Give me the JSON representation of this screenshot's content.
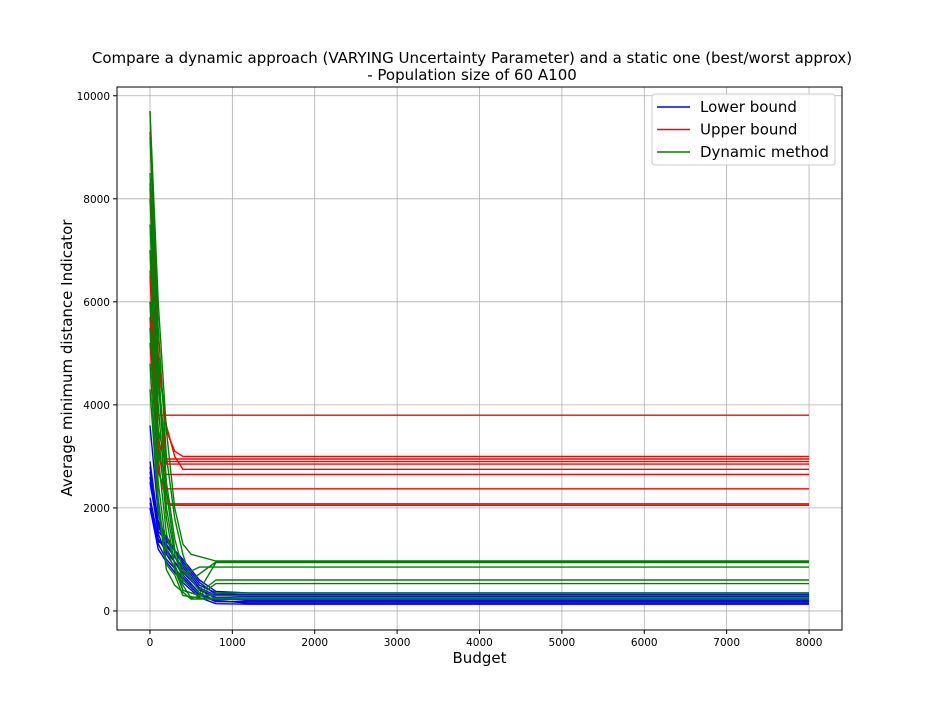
{
  "chart_data": {
    "type": "line",
    "title": "Compare a dynamic approach (VARYING Uncertainty Parameter) and a static one (best/worst approx)",
    "subtitle": "- Population size of 60 A100",
    "xlabel": "Budget",
    "ylabel": "Average minimum distance Indicator",
    "xlim": [
      -400,
      8400
    ],
    "ylim": [
      -370,
      10170
    ],
    "xticks": [
      0,
      1000,
      2000,
      3000,
      4000,
      5000,
      6000,
      7000,
      8000
    ],
    "yticks": [
      0,
      2000,
      4000,
      6000,
      8000,
      10000
    ],
    "xtick_labels": [
      "0",
      "1000",
      "2000",
      "3000",
      "4000",
      "5000",
      "6000",
      "7000",
      "8000"
    ],
    "ytick_labels": [
      "0",
      "2000",
      "4000",
      "6000",
      "8000",
      "10000"
    ],
    "grid": true,
    "legend_position": "top-right",
    "legend": [
      {
        "label": "Lower bound",
        "color": "#0000ff"
      },
      {
        "label": "Upper bound",
        "color": "#ff0000"
      },
      {
        "label": "Dynamic method",
        "color": "#008000"
      }
    ],
    "groups": [
      {
        "legend_label": "Lower bound",
        "color": "#0000ff",
        "runs": [
          {
            "x": [
              0,
              100,
              200,
              400,
              600,
              800,
              1200,
              6000,
              8000
            ],
            "y": [
              3600,
              1900,
              1300,
              800,
              400,
              250,
              200,
              200,
              200
            ]
          },
          {
            "x": [
              0,
              100,
              200,
              400,
              600,
              800,
              1200,
              6000,
              8000
            ],
            "y": [
              2900,
              1700,
              1200,
              700,
              350,
              200,
              150,
              150,
              150
            ]
          },
          {
            "x": [
              0,
              100,
              200,
              400,
              600,
              800,
              1200,
              6000,
              8000
            ],
            "y": [
              2800,
              1600,
              1450,
              900,
              500,
              350,
              300,
              300,
              300
            ]
          },
          {
            "x": [
              0,
              100,
              200,
              400,
              600,
              800,
              1200,
              6000,
              8000
            ],
            "y": [
              2600,
              1500,
              1100,
              600,
              300,
              220,
              220,
              220,
              220
            ]
          },
          {
            "x": [
              0,
              100,
              200,
              400,
              600,
              800,
              1200,
              6000,
              8000
            ],
            "y": [
              2500,
              1550,
              1350,
              1000,
              600,
              380,
              350,
              350,
              350
            ]
          },
          {
            "x": [
              0,
              100,
              200,
              400,
              600,
              800,
              1200,
              6000,
              8000
            ],
            "y": [
              2200,
              1400,
              1150,
              750,
              420,
              260,
              250,
              250,
              250
            ]
          },
          {
            "x": [
              0,
              100,
              200,
              400,
              600,
              800,
              1200,
              6000,
              8000
            ],
            "y": [
              2100,
              1300,
              1000,
              650,
              320,
              180,
              180,
              180,
              180
            ]
          },
          {
            "x": [
              0,
              100,
              200,
              400,
              600,
              800,
              1200,
              6000,
              8000
            ],
            "y": [
              2000,
              1350,
              1250,
              850,
              450,
              300,
              280,
              280,
              280
            ]
          },
          {
            "x": [
              0,
              100,
              200,
              400,
              600,
              800,
              1200,
              6000,
              8000
            ],
            "y": [
              2000,
              1200,
              950,
              550,
              260,
              140,
              130,
              130,
              130
            ]
          },
          {
            "x": [
              0,
              100,
              200,
              400,
              600,
              800,
              1200,
              6000,
              8000
            ],
            "y": [
              2700,
              1750,
              1400,
              950,
              550,
              320,
              320,
              320,
              320
            ]
          }
        ]
      },
      {
        "legend_label": "Upper bound",
        "color": "#ff0000",
        "runs": [
          {
            "x": [
              0,
              100,
              200,
              400,
              8000
            ],
            "y": [
              9700,
              3800,
              3800,
              3800,
              3800
            ]
          },
          {
            "x": [
              0,
              100,
              200,
              300,
              400,
              8000
            ],
            "y": [
              9300,
              5000,
              3500,
              3100,
              3000,
              3000
            ]
          },
          {
            "x": [
              0,
              100,
              200,
              400,
              8000
            ],
            "y": [
              8300,
              4500,
              2950,
              2950,
              2950
            ]
          },
          {
            "x": [
              0,
              100,
              200,
              300,
              400,
              8000
            ],
            "y": [
              8200,
              4800,
              3600,
              3000,
              2750,
              2750
            ]
          },
          {
            "x": [
              0,
              100,
              200,
              8000
            ],
            "y": [
              7000,
              3500,
              2900,
              2900
            ]
          },
          {
            "x": [
              0,
              100,
              200,
              8000
            ],
            "y": [
              6600,
              3300,
              2850,
              2850
            ]
          },
          {
            "x": [
              0,
              100,
              200,
              8000
            ],
            "y": [
              6000,
              3000,
              2650,
              2650
            ]
          },
          {
            "x": [
              0,
              100,
              150,
              8000
            ],
            "y": [
              5700,
              2800,
              2370,
              2370
            ]
          },
          {
            "x": [
              0,
              100,
              200,
              8000
            ],
            "y": [
              6500,
              3200,
              2080,
              2080
            ]
          },
          {
            "x": [
              0,
              100,
              250,
              8000
            ],
            "y": [
              5200,
              2700,
              2050,
              2050
            ]
          }
        ]
      },
      {
        "legend_label": "Dynamic method",
        "color": "#008000",
        "runs": [
          {
            "x": [
              0,
              100,
              200,
              300,
              400,
              500,
              800,
              8000
            ],
            "y": [
              9700,
              6000,
              3500,
              2000,
              1300,
              1100,
              970,
              970
            ]
          },
          {
            "x": [
              0,
              100,
              200,
              300,
              400,
              500,
              800,
              8000
            ],
            "y": [
              9200,
              5500,
              3000,
              1800,
              1100,
              600,
              950,
              950
            ]
          },
          {
            "x": [
              0,
              100,
              200,
              300,
              400,
              600,
              800,
              8000
            ],
            "y": [
              8500,
              4800,
              2500,
              1400,
              800,
              400,
              940,
              940
            ]
          },
          {
            "x": [
              0,
              100,
              200,
              300,
              400,
              600,
              8000
            ],
            "y": [
              8000,
              4500,
              2300,
              1200,
              700,
              850,
              850
            ]
          },
          {
            "x": [
              0,
              100,
              200,
              300,
              400,
              600,
              800,
              8000
            ],
            "y": [
              7500,
              4000,
              2000,
              1100,
              600,
              350,
              600,
              600
            ]
          },
          {
            "x": [
              0,
              100,
              200,
              300,
              400,
              600,
              800,
              8000
            ],
            "y": [
              7000,
              3500,
              1800,
              900,
              400,
              300,
              530,
              530
            ]
          },
          {
            "x": [
              0,
              100,
              200,
              300,
              400,
              500,
              800,
              8000
            ],
            "y": [
              6000,
              3000,
              1500,
              900,
              500,
              250,
              350,
              350
            ]
          },
          {
            "x": [
              0,
              100,
              200,
              300,
              400,
              600,
              800,
              8000
            ],
            "y": [
              5500,
              2500,
              1200,
              800,
              400,
              300,
              300,
              300
            ]
          },
          {
            "x": [
              0,
              100,
              200,
              300,
              400,
              600,
              800,
              8000
            ],
            "y": [
              4800,
              2200,
              900,
              700,
              300,
              250,
              250,
              250
            ]
          },
          {
            "x": [
              0,
              100,
              200,
              300,
              500,
              8000
            ],
            "y": [
              4300,
              2000,
              800,
              500,
              230,
              230
            ]
          }
        ]
      }
    ]
  }
}
